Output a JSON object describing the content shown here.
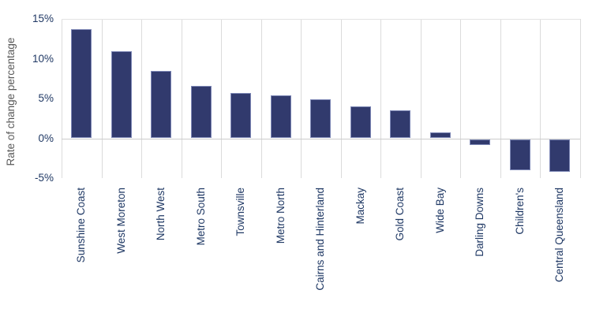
{
  "chart_data": {
    "type": "bar",
    "title": "",
    "xlabel": "",
    "ylabel": "Rate of change percentage",
    "categories": [
      "Sunshine Coast",
      "West Moreton",
      "North West",
      "Metro South",
      "Townsville",
      "Metro North",
      "Cairns and Hinterland",
      "Mackay",
      "Gold Coast",
      "Wide Bay",
      "Darling Downs",
      "Children's",
      "Central Queensland"
    ],
    "values": [
      13.7,
      10.9,
      8.5,
      6.6,
      5.7,
      5.4,
      4.9,
      4.0,
      3.5,
      0.7,
      -0.7,
      -3.9,
      -4.1
    ],
    "y_ticks": [
      "15%",
      "10%",
      "5%",
      "0%",
      "-5%"
    ],
    "y_tick_values": [
      15,
      10,
      5,
      0,
      -5
    ],
    "ylim": [
      -5,
      15
    ],
    "legend": "none",
    "grid": "vertical-category-gridlines",
    "colors": {
      "bar_fill": "#313A6D",
      "bar_border": "#7E88B6",
      "tick_label": "#1F3864",
      "axis_title": "#595959",
      "gridline": "#DBDBDB",
      "zero_line": "#CCCCCC"
    }
  }
}
